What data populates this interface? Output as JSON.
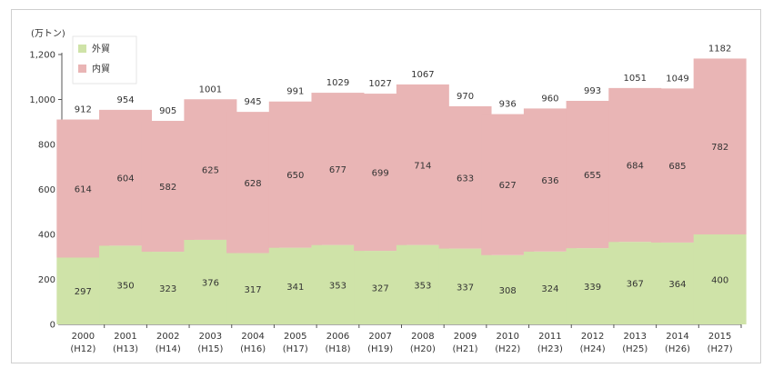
{
  "chart_data": {
    "type": "bar",
    "stacked": true,
    "unit_label": "(万トン)",
    "categories": [
      "2000",
      "2001",
      "2002",
      "2003",
      "2004",
      "2005",
      "2006",
      "2007",
      "2008",
      "2009",
      "2010",
      "2011",
      "2012",
      "2013",
      "2014",
      "2015"
    ],
    "sub_categories": [
      "(H12)",
      "(H13)",
      "(H14)",
      "(H15)",
      "(H16)",
      "(H17)",
      "(H18)",
      "(H19)",
      "(H20)",
      "(H21)",
      "(H22)",
      "(H23)",
      "(H24)",
      "(H25)",
      "(H26)",
      "(H27)"
    ],
    "series": [
      {
        "name": "外貿",
        "color": "#cfe3a8",
        "values": [
          297,
          350,
          323,
          376,
          317,
          341,
          353,
          327,
          353,
          337,
          308,
          324,
          339,
          367,
          364,
          400
        ]
      },
      {
        "name": "内貿",
        "color": "#e9b5b5",
        "values": [
          614,
          604,
          582,
          625,
          628,
          650,
          677,
          699,
          714,
          633,
          627,
          636,
          655,
          684,
          685,
          782
        ]
      }
    ],
    "totals": [
      912,
      954,
      905,
      1001,
      945,
      991,
      1029,
      1027,
      1067,
      970,
      936,
      960,
      993,
      1051,
      1049,
      1182
    ],
    "yticks": [
      0,
      200,
      400,
      600,
      800,
      1000,
      1200
    ],
    "ytick_labels": [
      "0",
      "200",
      "400",
      "600",
      "800",
      "1,000",
      "1,200"
    ],
    "ylim": [
      0,
      1200
    ],
    "grid": false,
    "legend_position": "top-left"
  }
}
